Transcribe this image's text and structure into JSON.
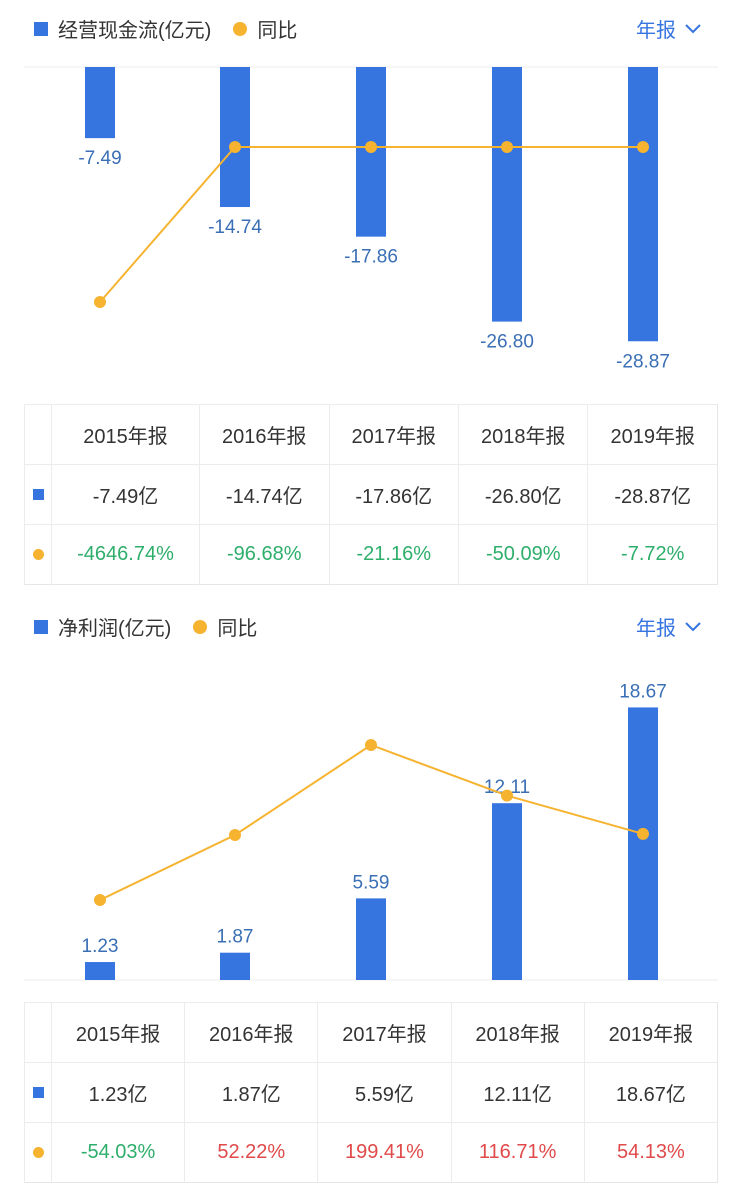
{
  "period_label": "年报",
  "chart_data": [
    {
      "type": "bar",
      "legend_bar": "经营现金流(亿元)",
      "legend_line": "同比",
      "categories": [
        "2015年报",
        "2016年报",
        "2017年报",
        "2018年报",
        "2019年报"
      ],
      "series": [
        {
          "name": "经营现金流(亿元)",
          "type": "bar",
          "values": [
            -7.49,
            -14.74,
            -17.86,
            -26.8,
            -28.87
          ],
          "labels": [
            "-7.49",
            "-14.74",
            "-17.86",
            "-26.80",
            "-28.87"
          ]
        },
        {
          "name": "同比",
          "type": "line",
          "values": [
            -4646.74,
            -96.68,
            -21.16,
            -50.09,
            -7.72
          ]
        }
      ],
      "table": {
        "bar_row": [
          "-7.49亿",
          "-14.74亿",
          "-17.86亿",
          "-26.80亿",
          "-28.87亿"
        ],
        "line_row": [
          "-4646.74%",
          "-96.68%",
          "-21.16%",
          "-50.09%",
          "-7.72%"
        ]
      },
      "colors": {
        "bar": "#3674e0",
        "line": "#f5b330",
        "positive": "#e04a4a",
        "negative": "#2eae6b"
      }
    },
    {
      "type": "bar",
      "legend_bar": "净利润(亿元)",
      "legend_line": "同比",
      "categories": [
        "2015年报",
        "2016年报",
        "2017年报",
        "2018年报",
        "2019年报"
      ],
      "series": [
        {
          "name": "净利润(亿元)",
          "type": "bar",
          "values": [
            1.23,
            1.87,
            5.59,
            12.11,
            18.67
          ],
          "labels": [
            "1.23",
            "1.87",
            "5.59",
            "12.11",
            "18.67"
          ]
        },
        {
          "name": "同比",
          "type": "line",
          "values": [
            -54.03,
            52.22,
            199.41,
            116.71,
            54.13
          ]
        }
      ],
      "table": {
        "bar_row": [
          "1.23亿",
          "1.87亿",
          "5.59亿",
          "12.11亿",
          "18.67亿"
        ],
        "line_row": [
          "-54.03%",
          "52.22%",
          "199.41%",
          "116.71%",
          "54.13%"
        ]
      },
      "colors": {
        "bar": "#3674e0",
        "line": "#f5b330",
        "positive": "#e04a4a",
        "negative": "#2eae6b"
      }
    }
  ]
}
